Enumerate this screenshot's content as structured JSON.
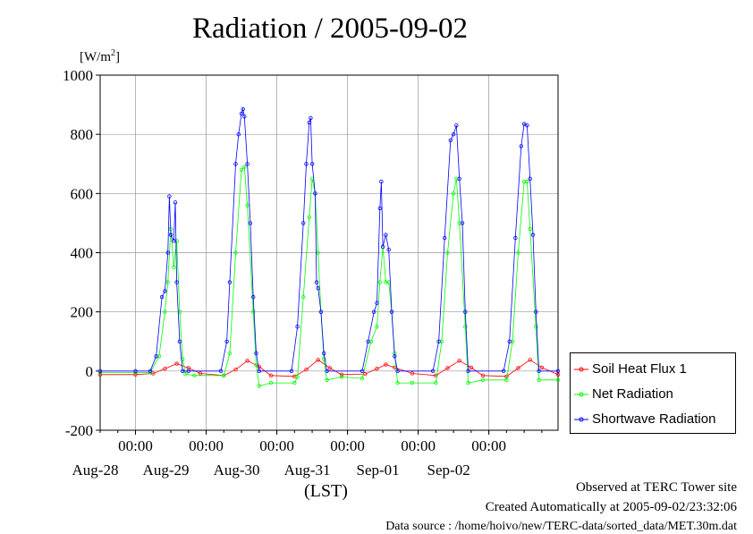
{
  "title": "Radiation / 2005-09-02",
  "unit_label": "[W/m",
  "unit_exp": "2",
  "unit_close": "]",
  "x_time_label": "(LST)",
  "footer": {
    "line1": "Observed at TERC Tower site",
    "line2": "Created Automatically at 2005-09-02/23:32:06",
    "line3": "Data source : /home/hoivo/new/TERC-data/sorted_data/MET.30m.dat"
  },
  "colors": {
    "soil": "#ff0000",
    "net": "#00ff00",
    "shortwave": "#0000ff",
    "grid": "#999999"
  },
  "chart_data": {
    "type": "line",
    "title": "Radiation / 2005-09-02",
    "ylabel": "[W/m2]",
    "xlabel": "(LST)",
    "ylim": [
      -200,
      1000
    ],
    "yticks": [
      -200,
      0,
      200,
      400,
      600,
      800,
      1000
    ],
    "xlim": [
      "2005-08-27 12:00",
      "2005-09-02 23:30"
    ],
    "x_ticks": [
      {
        "time": "2005-08-28 00:00",
        "label": "00:00",
        "date": "Aug-28"
      },
      {
        "time": "2005-08-29 00:00",
        "label": "00:00",
        "date": "Aug-29"
      },
      {
        "time": "2005-08-30 00:00",
        "label": "00:00",
        "date": "Aug-30"
      },
      {
        "time": "2005-08-31 00:00",
        "label": "00:00",
        "date": "Aug-31"
      },
      {
        "time": "2005-09-01 00:00",
        "label": "00:00",
        "date": "Sep-01"
      },
      {
        "time": "2005-09-02 00:00",
        "label": "00:00",
        "date": "Sep-02"
      }
    ],
    "grid": true,
    "legend_position": "right",
    "series": [
      {
        "name": "Soil Heat Flux 1",
        "color": "#ff0000",
        "marker": "circle-open",
        "points": [
          [
            "2005-08-27 12:00",
            -12
          ],
          [
            "2005-08-28 00:00",
            -12
          ],
          [
            "2005-08-28 06:00",
            -8
          ],
          [
            "2005-08-28 10:00",
            8
          ],
          [
            "2005-08-28 14:00",
            25
          ],
          [
            "2005-08-28 18:00",
            10
          ],
          [
            "2005-08-28 22:00",
            -8
          ],
          [
            "2005-08-29 06:00",
            -15
          ],
          [
            "2005-08-29 10:00",
            5
          ],
          [
            "2005-08-29 14:00",
            35
          ],
          [
            "2005-08-29 18:00",
            15
          ],
          [
            "2005-08-29 22:00",
            -15
          ],
          [
            "2005-08-30 06:00",
            -18
          ],
          [
            "2005-08-30 10:00",
            5
          ],
          [
            "2005-08-30 14:00",
            38
          ],
          [
            "2005-08-30 18:00",
            10
          ],
          [
            "2005-08-30 22:00",
            -12
          ],
          [
            "2005-08-31 06:00",
            -10
          ],
          [
            "2005-08-31 10:00",
            8
          ],
          [
            "2005-08-31 13:00",
            22
          ],
          [
            "2005-08-31 16:00",
            12
          ],
          [
            "2005-08-31 22:00",
            -8
          ],
          [
            "2005-09-01 06:00",
            -15
          ],
          [
            "2005-09-01 10:00",
            10
          ],
          [
            "2005-09-01 14:00",
            35
          ],
          [
            "2005-09-01 18:00",
            12
          ],
          [
            "2005-09-01 22:00",
            -15
          ],
          [
            "2005-09-02 06:00",
            -18
          ],
          [
            "2005-09-02 10:00",
            10
          ],
          [
            "2005-09-02 14:00",
            38
          ],
          [
            "2005-09-02 18:00",
            12
          ],
          [
            "2005-09-02 23:30",
            -12
          ]
        ]
      },
      {
        "name": "Net Radiation",
        "color": "#00ff00",
        "marker": "circle-open",
        "points": [
          [
            "2005-08-27 12:00",
            -5
          ],
          [
            "2005-08-28 00:00",
            -5
          ],
          [
            "2005-08-28 05:00",
            -5
          ],
          [
            "2005-08-28 08:00",
            50
          ],
          [
            "2005-08-28 10:00",
            200
          ],
          [
            "2005-08-28 11:00",
            300
          ],
          [
            "2005-08-28 12:00",
            480
          ],
          [
            "2005-08-28 13:00",
            350
          ],
          [
            "2005-08-28 14:00",
            440
          ],
          [
            "2005-08-28 15:00",
            200
          ],
          [
            "2005-08-28 16:00",
            40
          ],
          [
            "2005-08-28 17:00",
            -10
          ],
          [
            "2005-08-28 20:00",
            -15
          ],
          [
            "2005-08-29 06:00",
            -15
          ],
          [
            "2005-08-29 08:00",
            60
          ],
          [
            "2005-08-29 10:00",
            400
          ],
          [
            "2005-08-29 12:00",
            680
          ],
          [
            "2005-08-29 13:00",
            690
          ],
          [
            "2005-08-29 14:00",
            560
          ],
          [
            "2005-08-29 16:00",
            200
          ],
          [
            "2005-08-29 17:00",
            20
          ],
          [
            "2005-08-29 18:00",
            -50
          ],
          [
            "2005-08-29 22:00",
            -40
          ],
          [
            "2005-08-30 06:00",
            -40
          ],
          [
            "2005-08-30 07:00",
            -20
          ],
          [
            "2005-08-30 09:00",
            250
          ],
          [
            "2005-08-30 11:00",
            520
          ],
          [
            "2005-08-30 12:00",
            650
          ],
          [
            "2005-08-30 13:00",
            600
          ],
          [
            "2005-08-30 14:00",
            400
          ],
          [
            "2005-08-30 15:00",
            200
          ],
          [
            "2005-08-30 16:00",
            40
          ],
          [
            "2005-08-30 17:00",
            -30
          ],
          [
            "2005-08-30 22:00",
            -20
          ],
          [
            "2005-08-31 05:00",
            -25
          ],
          [
            "2005-08-31 08:00",
            100
          ],
          [
            "2005-08-31 10:00",
            150
          ],
          [
            "2005-08-31 11:00",
            300
          ],
          [
            "2005-08-31 12:00",
            420
          ],
          [
            "2005-08-31 13:00",
            300
          ],
          [
            "2005-08-31 14:00",
            300
          ],
          [
            "2005-08-31 15:00",
            200
          ],
          [
            "2005-08-31 16:00",
            60
          ],
          [
            "2005-08-31 17:00",
            -40
          ],
          [
            "2005-08-31 22:00",
            -40
          ],
          [
            "2005-09-01 06:00",
            -40
          ],
          [
            "2005-09-01 08:00",
            100
          ],
          [
            "2005-09-01 10:00",
            400
          ],
          [
            "2005-09-01 12:00",
            600
          ],
          [
            "2005-09-01 13:00",
            650
          ],
          [
            "2005-09-01 14:00",
            500
          ],
          [
            "2005-09-01 16:00",
            150
          ],
          [
            "2005-09-01 17:00",
            -40
          ],
          [
            "2005-09-01 22:00",
            -30
          ],
          [
            "2005-09-02 06:00",
            -30
          ],
          [
            "2005-09-02 08:00",
            100
          ],
          [
            "2005-09-02 10:00",
            400
          ],
          [
            "2005-09-02 12:00",
            640
          ],
          [
            "2005-09-02 13:00",
            640
          ],
          [
            "2005-09-02 14:00",
            480
          ],
          [
            "2005-09-02 16:00",
            150
          ],
          [
            "2005-09-02 17:00",
            -30
          ],
          [
            "2005-09-02 23:30",
            -30
          ]
        ]
      },
      {
        "name": "Shortwave Radiation",
        "color": "#0000ff",
        "marker": "circle-open",
        "points": [
          [
            "2005-08-27 12:00",
            0
          ],
          [
            "2005-08-28 00:00",
            0
          ],
          [
            "2005-08-28 05:00",
            0
          ],
          [
            "2005-08-28 07:00",
            50
          ],
          [
            "2005-08-28 09:00",
            250
          ],
          [
            "2005-08-28 10:00",
            270
          ],
          [
            "2005-08-28 11:00",
            400
          ],
          [
            "2005-08-28 11:30",
            590
          ],
          [
            "2005-08-28 12:00",
            460
          ],
          [
            "2005-08-28 13:00",
            440
          ],
          [
            "2005-08-28 13:30",
            570
          ],
          [
            "2005-08-28 14:00",
            300
          ],
          [
            "2005-08-28 15:00",
            100
          ],
          [
            "2005-08-28 16:00",
            0
          ],
          [
            "2005-08-28 18:00",
            0
          ],
          [
            "2005-08-29 05:00",
            0
          ],
          [
            "2005-08-29 07:00",
            100
          ],
          [
            "2005-08-29 08:00",
            300
          ],
          [
            "2005-08-29 10:00",
            700
          ],
          [
            "2005-08-29 11:00",
            800
          ],
          [
            "2005-08-29 12:00",
            870
          ],
          [
            "2005-08-29 12:30",
            885
          ],
          [
            "2005-08-29 13:00",
            860
          ],
          [
            "2005-08-29 14:00",
            700
          ],
          [
            "2005-08-29 15:00",
            500
          ],
          [
            "2005-08-29 16:00",
            250
          ],
          [
            "2005-08-29 17:00",
            60
          ],
          [
            "2005-08-29 18:00",
            0
          ],
          [
            "2005-08-30 05:00",
            0
          ],
          [
            "2005-08-30 07:00",
            150
          ],
          [
            "2005-08-30 09:00",
            500
          ],
          [
            "2005-08-30 10:00",
            700
          ],
          [
            "2005-08-30 11:00",
            840
          ],
          [
            "2005-08-30 11:30",
            855
          ],
          [
            "2005-08-30 12:00",
            700
          ],
          [
            "2005-08-30 13:00",
            600
          ],
          [
            "2005-08-30 13:30",
            300
          ],
          [
            "2005-08-30 14:00",
            280
          ],
          [
            "2005-08-30 15:00",
            200
          ],
          [
            "2005-08-30 16:00",
            60
          ],
          [
            "2005-08-30 17:00",
            0
          ],
          [
            "2005-08-31 05:00",
            0
          ],
          [
            "2005-08-31 07:00",
            100
          ],
          [
            "2005-08-31 09:00",
            200
          ],
          [
            "2005-08-31 10:00",
            230
          ],
          [
            "2005-08-31 11:00",
            550
          ],
          [
            "2005-08-31 11:30",
            640
          ],
          [
            "2005-08-31 12:00",
            420
          ],
          [
            "2005-08-31 13:00",
            460
          ],
          [
            "2005-08-31 14:00",
            410
          ],
          [
            "2005-08-31 15:00",
            200
          ],
          [
            "2005-08-31 16:00",
            50
          ],
          [
            "2005-08-31 17:00",
            0
          ],
          [
            "2005-09-01 05:00",
            0
          ],
          [
            "2005-09-01 07:00",
            100
          ],
          [
            "2005-09-01 09:00",
            450
          ],
          [
            "2005-09-01 11:00",
            780
          ],
          [
            "2005-09-01 12:00",
            800
          ],
          [
            "2005-09-01 13:00",
            830
          ],
          [
            "2005-09-01 14:00",
            650
          ],
          [
            "2005-09-01 15:00",
            500
          ],
          [
            "2005-09-01 16:00",
            200
          ],
          [
            "2005-09-01 17:00",
            0
          ],
          [
            "2005-09-02 05:00",
            0
          ],
          [
            "2005-09-02 07:00",
            100
          ],
          [
            "2005-09-02 09:00",
            450
          ],
          [
            "2005-09-02 11:00",
            760
          ],
          [
            "2005-09-02 12:00",
            835
          ],
          [
            "2005-09-02 13:00",
            830
          ],
          [
            "2005-09-02 14:00",
            650
          ],
          [
            "2005-09-02 15:00",
            460
          ],
          [
            "2005-09-02 16:00",
            200
          ],
          [
            "2005-09-02 17:00",
            0
          ],
          [
            "2005-09-02 23:30",
            0
          ]
        ]
      }
    ]
  }
}
